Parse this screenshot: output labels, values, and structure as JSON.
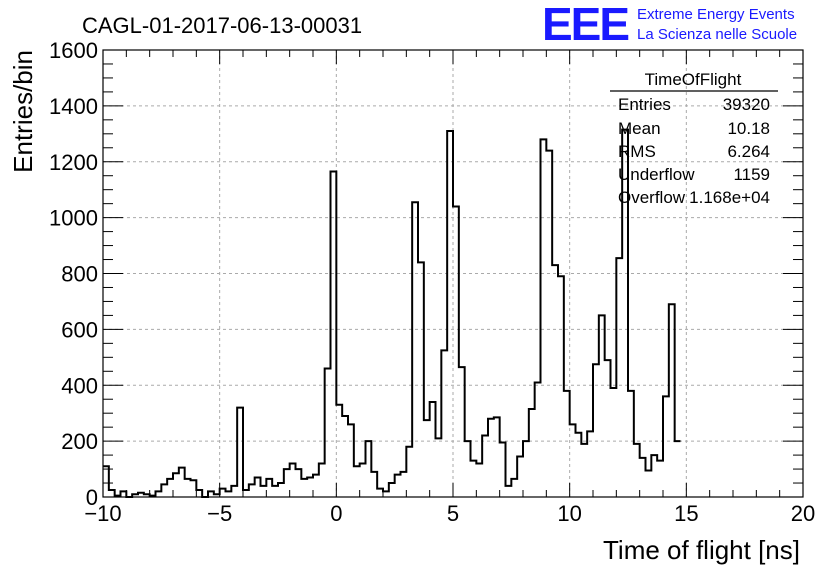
{
  "chart_data": {
    "type": "histogram",
    "title": "CAGL-01-2017-06-13-00031",
    "xlabel": "Time of flight [ns]",
    "ylabel": "Entries/bin",
    "xlim": [
      -10,
      20
    ],
    "ylim": [
      0,
      1600
    ],
    "grid": true,
    "x_ticks": [
      "−10",
      "−5",
      "0",
      "5",
      "10",
      "15",
      "20"
    ],
    "y_ticks": [
      "0",
      "200",
      "400",
      "600",
      "800",
      "1000",
      "1200",
      "1400",
      "1600"
    ],
    "bin_width": 0.25,
    "bin_start": -10,
    "values": [
      110,
      25,
      5,
      20,
      0,
      10,
      15,
      10,
      5,
      20,
      45,
      65,
      85,
      105,
      65,
      60,
      25,
      0,
      20,
      10,
      30,
      20,
      40,
      320,
      25,
      45,
      70,
      40,
      65,
      40,
      50,
      100,
      120,
      100,
      65,
      70,
      80,
      120,
      460,
      1165,
      330,
      290,
      260,
      110,
      120,
      200,
      90,
      30,
      20,
      50,
      80,
      90,
      180,
      1055,
      840,
      275,
      340,
      210,
      525,
      1310,
      1040,
      465,
      200,
      130,
      120,
      220,
      280,
      285,
      195,
      40,
      65,
      145,
      200,
      315,
      410,
      1280,
      1240,
      830,
      790,
      380,
      260,
      230,
      190,
      235,
      475,
      650,
      490,
      390,
      855,
      1315,
      380,
      190,
      140,
      95,
      150,
      130,
      360,
      690,
      200
    ],
    "stats": {
      "name": "TimeOfFlight",
      "entries_label": "Entries",
      "entries": "39320",
      "mean_label": "Mean",
      "mean": "10.18",
      "rms_label": "RMS",
      "rms": "6.264",
      "underflow_label": "Underflow",
      "underflow": "1159",
      "overflow_label": "Overflow",
      "overflow": "1.168e+04"
    }
  },
  "logo": {
    "mark": "EEE",
    "line1": "Extreme Energy Events",
    "line2": "La Scienza nelle Scuole"
  },
  "colors": {
    "histogram": "#000000",
    "grid": "#aaaaaa",
    "logo": "#1a1aff"
  }
}
